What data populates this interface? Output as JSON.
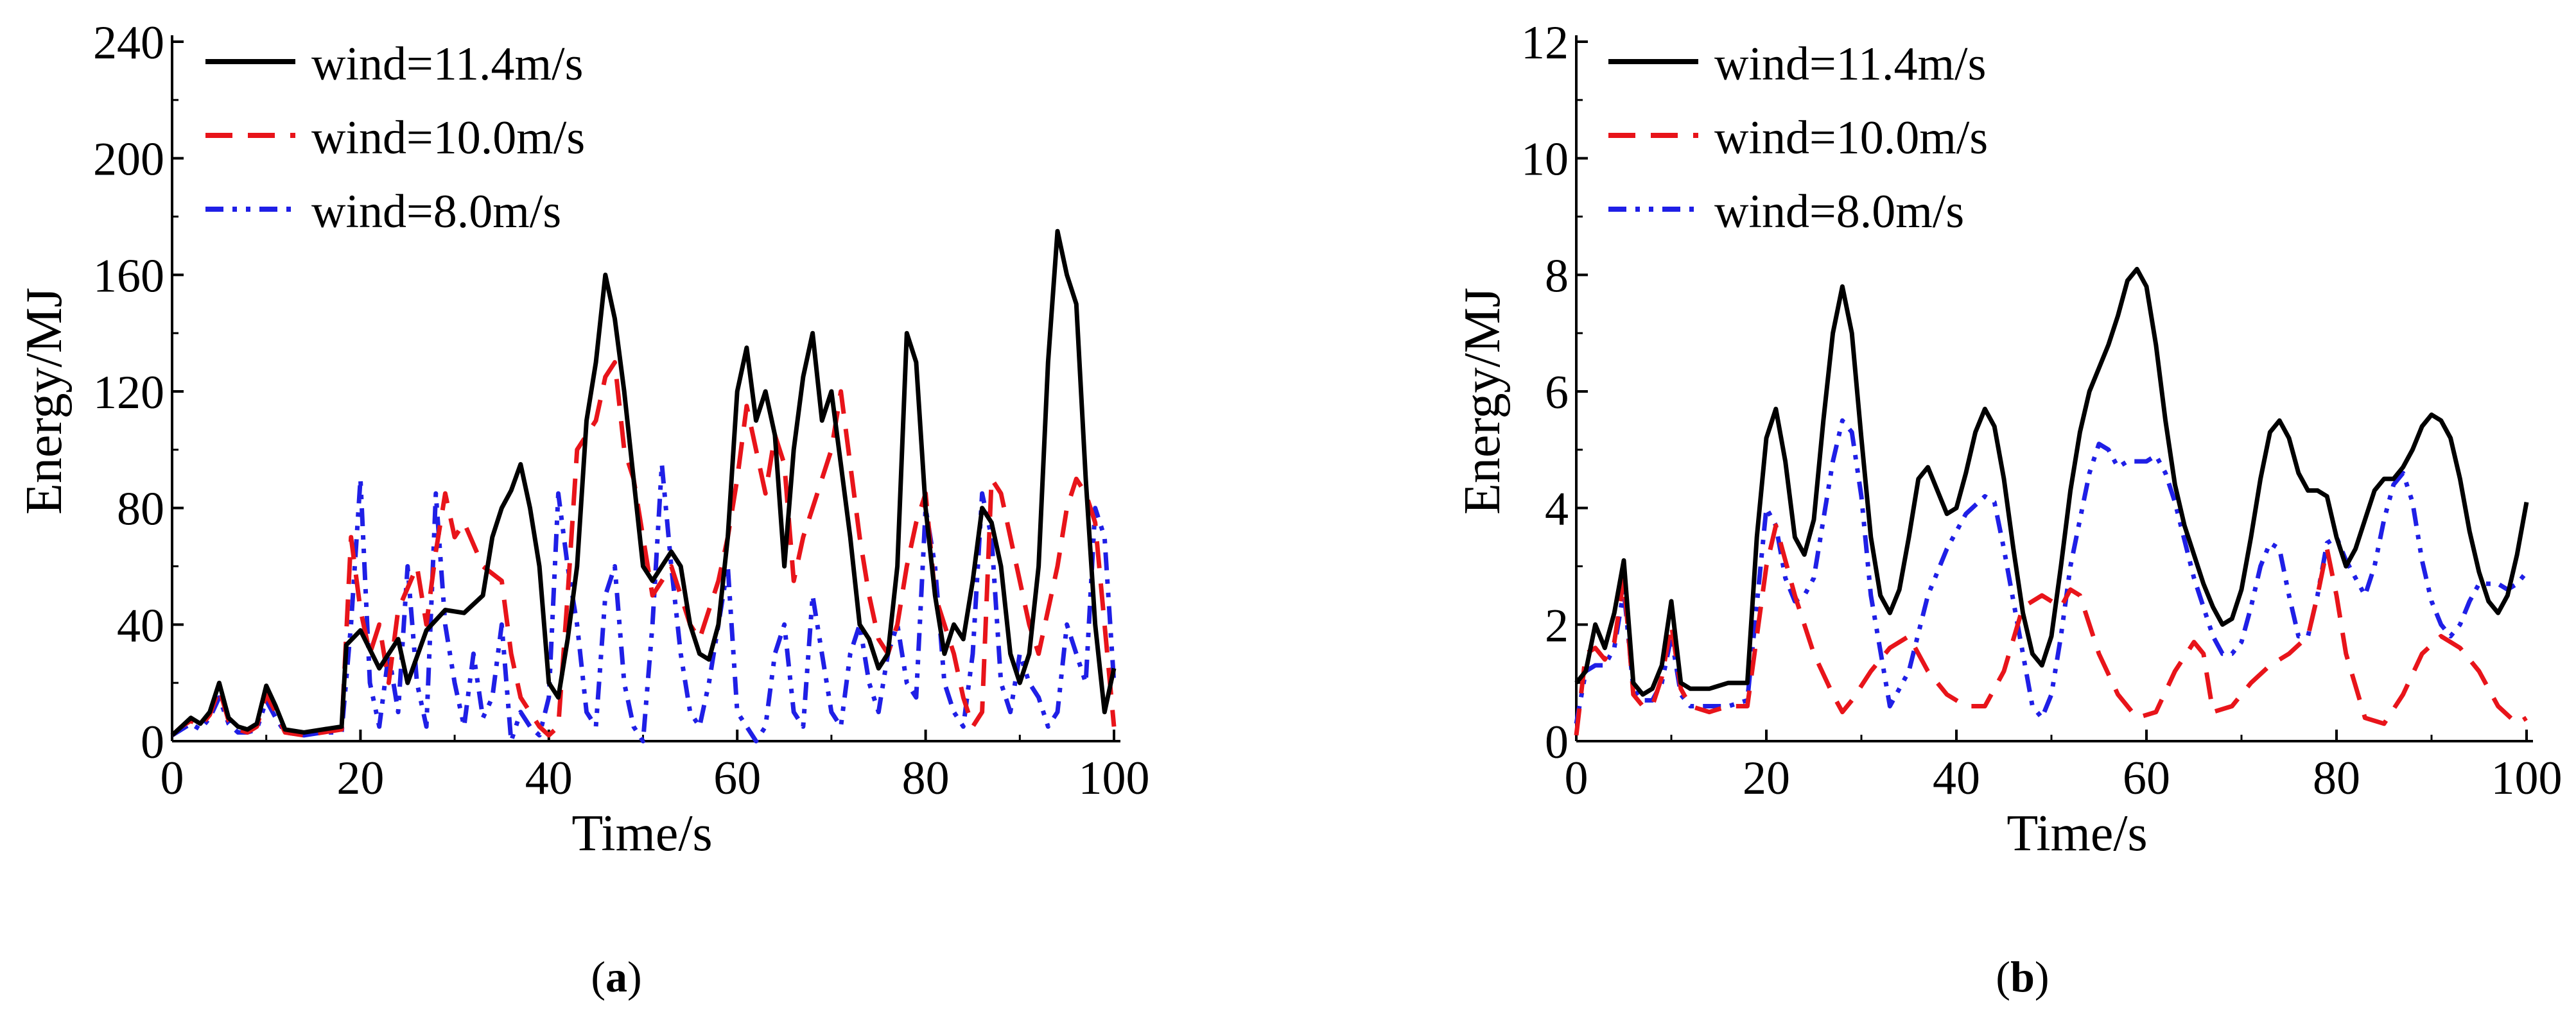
{
  "chart_data": [
    {
      "type": "line",
      "panel_label": "a",
      "xlabel": "Time/s",
      "ylabel": "Energy/MJ",
      "xlim": [
        0,
        100
      ],
      "ylim": [
        0,
        240
      ],
      "xticks": [
        "0",
        "20",
        "40",
        "60",
        "80",
        "100"
      ],
      "yticks": [
        "0",
        "40",
        "80",
        "120",
        "160",
        "200",
        "240"
      ],
      "series": [
        {
          "name": "wind=11.4m/s",
          "color": "#000000",
          "style": "solid",
          "x": [
            0,
            1,
            2,
            3,
            4,
            5,
            6,
            7,
            8,
            9,
            10,
            11,
            12,
            14,
            16,
            18,
            18.5,
            20,
            22,
            24,
            25,
            27,
            29,
            31,
            33,
            34,
            35,
            36,
            37,
            38,
            39,
            40,
            41,
            42,
            43,
            44,
            45,
            46,
            47,
            48,
            49,
            50,
            51,
            52,
            53,
            54,
            55,
            56,
            57,
            58,
            59,
            60,
            61,
            62,
            63,
            64,
            65,
            66,
            67,
            68,
            69,
            70,
            71,
            72,
            73,
            74,
            75,
            76,
            77,
            78,
            79,
            80,
            81,
            82,
            83,
            84,
            85,
            86,
            87,
            88,
            89,
            90,
            91,
            92,
            93,
            94,
            95,
            96,
            97,
            98,
            99,
            100
          ],
          "y": [
            2,
            5,
            8,
            6,
            10,
            20,
            8,
            5,
            4,
            6,
            19,
            12,
            4,
            3,
            4,
            5,
            33,
            38,
            25,
            35,
            20,
            38,
            45,
            44,
            50,
            70,
            80,
            86,
            95,
            80,
            60,
            20,
            15,
            35,
            60,
            110,
            130,
            160,
            145,
            120,
            90,
            60,
            55,
            60,
            65,
            60,
            40,
            30,
            28,
            40,
            70,
            120,
            135,
            110,
            120,
            105,
            60,
            100,
            125,
            140,
            110,
            120,
            95,
            70,
            40,
            35,
            25,
            30,
            60,
            140,
            130,
            80,
            50,
            30,
            40,
            35,
            55,
            80,
            75,
            60,
            30,
            20,
            30,
            60,
            130,
            175,
            160,
            150,
            90,
            40,
            10,
            25
          ]
        },
        {
          "name": "wind=10.0m/s",
          "color": "#e8141a",
          "style": "dashed",
          "x": [
            0,
            1,
            2,
            3,
            4,
            5,
            6,
            7,
            8,
            9,
            10,
            11,
            12,
            14,
            16,
            18,
            19,
            20,
            21,
            22,
            23,
            24,
            26,
            27,
            28,
            29,
            30,
            31,
            33,
            35,
            36,
            37,
            38,
            39,
            40,
            41,
            42,
            43,
            44,
            45,
            46,
            47,
            48,
            49,
            50,
            51,
            52,
            53,
            54,
            55,
            56,
            57,
            58,
            59,
            60,
            61,
            62,
            63,
            64,
            65,
            66,
            67,
            68,
            69,
            70,
            71,
            72,
            73,
            74,
            75,
            76,
            77,
            78,
            79,
            80,
            81,
            82,
            83,
            84,
            85,
            86,
            87,
            88,
            89,
            90,
            91,
            92,
            93,
            94,
            95,
            96,
            97,
            98,
            99,
            100
          ],
          "y": [
            2,
            5,
            7,
            5,
            9,
            18,
            7,
            4,
            3,
            5,
            16,
            10,
            3,
            2,
            3,
            4,
            70,
            45,
            30,
            40,
            20,
            45,
            60,
            40,
            65,
            85,
            70,
            75,
            60,
            55,
            30,
            15,
            10,
            5,
            2,
            5,
            50,
            100,
            105,
            110,
            125,
            130,
            100,
            90,
            70,
            50,
            55,
            60,
            50,
            40,
            35,
            45,
            55,
            70,
            90,
            115,
            100,
            85,
            105,
            95,
            55,
            70,
            80,
            90,
            100,
            120,
            95,
            70,
            50,
            35,
            30,
            40,
            60,
            75,
            85,
            50,
            40,
            30,
            15,
            5,
            10,
            90,
            85,
            70,
            55,
            40,
            30,
            45,
            60,
            80,
            90,
            85,
            75,
            40,
            5
          ]
        },
        {
          "name": "wind=8.0m/s",
          "color": "#1f1fe6",
          "style": "dashdot",
          "x": [
            0,
            1,
            2,
            3,
            4,
            5,
            6,
            7,
            8,
            9,
            10,
            11,
            12,
            14,
            16,
            18,
            19,
            20,
            21,
            22,
            23,
            24,
            25,
            26,
            27,
            28,
            29,
            30,
            31,
            32,
            33,
            34,
            35,
            36,
            37,
            38,
            39,
            40,
            41,
            42,
            43,
            44,
            45,
            46,
            47,
            48,
            49,
            50,
            51,
            52,
            53,
            54,
            55,
            56,
            57,
            58,
            59,
            60,
            61,
            62,
            63,
            64,
            65,
            66,
            67,
            68,
            69,
            70,
            71,
            72,
            73,
            74,
            75,
            76,
            77,
            78,
            79,
            80,
            81,
            82,
            83,
            84,
            85,
            86,
            87,
            88,
            89,
            90,
            91,
            92,
            93,
            94,
            95,
            96,
            97,
            98,
            99,
            100
          ],
          "y": [
            2,
            4,
            6,
            4,
            8,
            15,
            6,
            3,
            3,
            4,
            14,
            8,
            3,
            2,
            3,
            3,
            40,
            90,
            20,
            5,
            30,
            10,
            60,
            20,
            5,
            85,
            40,
            20,
            5,
            30,
            8,
            15,
            40,
            0,
            10,
            5,
            2,
            15,
            85,
            60,
            40,
            10,
            5,
            50,
            60,
            20,
            5,
            0,
            40,
            95,
            60,
            30,
            10,
            5,
            20,
            40,
            60,
            10,
            5,
            0,
            5,
            30,
            40,
            10,
            5,
            50,
            30,
            10,
            5,
            30,
            40,
            20,
            10,
            30,
            40,
            20,
            15,
            80,
            60,
            20,
            10,
            5,
            30,
            85,
            70,
            20,
            10,
            30,
            20,
            15,
            5,
            10,
            40,
            30,
            20,
            80,
            70,
            20
          ]
        }
      ]
    },
    {
      "type": "line",
      "panel_label": "b",
      "xlabel": "Time/s",
      "ylabel": "Energy/MJ",
      "xlim": [
        0,
        100
      ],
      "ylim": [
        0,
        12
      ],
      "xticks": [
        "0",
        "20",
        "40",
        "60",
        "80",
        "100"
      ],
      "yticks": [
        "0",
        "2",
        "4",
        "6",
        "8",
        "10",
        "12"
      ],
      "series": [
        {
          "name": "wind=11.4m/s",
          "color": "#000000",
          "style": "solid",
          "x": [
            0,
            1,
            2,
            3,
            4,
            5,
            6,
            7,
            8,
            9,
            10,
            11,
            12,
            14,
            16,
            18,
            19,
            20,
            21,
            22,
            23,
            24,
            25,
            26,
            27,
            28,
            29,
            30,
            31,
            32,
            33,
            34,
            35,
            36,
            37,
            38,
            39,
            40,
            41,
            42,
            43,
            44,
            45,
            46,
            47,
            48,
            49,
            50,
            51,
            52,
            53,
            54,
            55,
            56,
            57,
            58,
            59,
            60,
            61,
            62,
            63,
            64,
            65,
            66,
            67,
            68,
            69,
            70,
            71,
            72,
            73,
            74,
            75,
            76,
            77,
            78,
            79,
            80,
            81,
            82,
            83,
            84,
            85,
            86,
            87,
            88,
            89,
            90,
            91,
            92,
            93,
            94,
            95,
            96,
            97,
            98,
            99,
            100
          ],
          "y": [
            1,
            1.2,
            2,
            1.6,
            2.2,
            3.1,
            1,
            0.8,
            0.9,
            1.3,
            2.4,
            1,
            0.9,
            0.9,
            1,
            1,
            3.5,
            5.2,
            5.7,
            4.8,
            3.5,
            3.2,
            3.8,
            5.5,
            7,
            7.8,
            7,
            5.2,
            3.5,
            2.5,
            2.2,
            2.6,
            3.5,
            4.5,
            4.7,
            4.3,
            3.9,
            4,
            4.6,
            5.3,
            5.7,
            5.4,
            4.5,
            3.3,
            2.2,
            1.5,
            1.3,
            1.8,
            3,
            4.3,
            5.3,
            6,
            6.4,
            6.8,
            7.3,
            7.9,
            8.1,
            7.8,
            6.8,
            5.5,
            4.4,
            3.7,
            3.2,
            2.7,
            2.3,
            2,
            2.1,
            2.6,
            3.5,
            4.5,
            5.3,
            5.5,
            5.2,
            4.6,
            4.3,
            4.3,
            4.2,
            3.5,
            3,
            3.3,
            3.8,
            4.3,
            4.5,
            4.5,
            4.7,
            5,
            5.4,
            5.6,
            5.5,
            5.2,
            4.5,
            3.6,
            2.9,
            2.4,
            2.2,
            2.5,
            3.2,
            4.1
          ]
        },
        {
          "name": "wind=10.0m/s",
          "color": "#e8141a",
          "style": "dashed",
          "x": [
            0,
            1,
            2,
            3,
            4,
            5,
            6,
            7,
            8,
            9,
            10,
            11,
            12,
            14,
            16,
            18,
            20,
            21,
            23,
            25,
            27,
            28,
            29,
            31,
            33,
            35,
            37,
            39,
            41,
            43,
            45,
            47,
            49,
            50,
            51,
            52,
            53,
            55,
            57,
            59,
            61,
            63,
            65,
            66,
            67,
            69,
            71,
            73,
            75,
            77,
            78,
            79,
            80,
            81,
            83,
            85,
            87,
            89,
            91,
            93,
            95,
            97,
            99,
            100
          ],
          "y": [
            0.1,
            1.5,
            1.6,
            1.4,
            1.7,
            2.8,
            0.8,
            0.6,
            0.6,
            1.1,
            2,
            0.9,
            0.6,
            0.5,
            0.6,
            0.6,
            3,
            3.7,
            2.5,
            1.5,
            0.8,
            0.5,
            0.7,
            1.2,
            1.6,
            1.8,
            1.2,
            0.8,
            0.6,
            0.6,
            1.2,
            2.3,
            2.5,
            2.4,
            2.3,
            2.6,
            2.5,
            1.5,
            0.8,
            0.4,
            0.5,
            1.2,
            1.7,
            1.5,
            0.5,
            0.6,
            1,
            1.3,
            1.5,
            1.8,
            2.5,
            3.3,
            2.5,
            1.5,
            0.4,
            0.3,
            0.8,
            1.5,
            1.8,
            1.6,
            1.2,
            0.6,
            0.3,
            0.4
          ]
        },
        {
          "name": "wind=8.0m/s",
          "color": "#1f1fe6",
          "style": "dashdot",
          "x": [
            0,
            1,
            2,
            3,
            4,
            5,
            6,
            7,
            8,
            9,
            10,
            11,
            12,
            14,
            16,
            18,
            20,
            21,
            22,
            23,
            24,
            25,
            26,
            27,
            28,
            29,
            30,
            31,
            33,
            35,
            37,
            39,
            41,
            43,
            44,
            45,
            47,
            48,
            49,
            50,
            51,
            52,
            53,
            54,
            55,
            56,
            57,
            58,
            59,
            60,
            61,
            62,
            63,
            65,
            67,
            68,
            69,
            70,
            71,
            72,
            73,
            74,
            75,
            76,
            77,
            78,
            79,
            80,
            81,
            82,
            83,
            84,
            85,
            86,
            87,
            88,
            89,
            90,
            91,
            92,
            93,
            94,
            95,
            96,
            97,
            98,
            99,
            100
          ],
          "y": [
            0.3,
            1.2,
            1.3,
            1.3,
            1.6,
            2.6,
            0.9,
            0.7,
            0.7,
            1,
            1.8,
            0.8,
            0.6,
            0.6,
            0.6,
            0.7,
            4,
            3.7,
            2.8,
            2.4,
            2.5,
            2.8,
            3.8,
            4.8,
            5.5,
            5.3,
            4.2,
            2.5,
            0.6,
            1.2,
            2.5,
            3.3,
            3.9,
            4.2,
            4.1,
            3.3,
            1.5,
            0.6,
            0.4,
            0.8,
            1.8,
            3,
            3.8,
            4.6,
            5.1,
            5,
            4.7,
            4.8,
            4.8,
            4.8,
            4.9,
            4.6,
            4.1,
            2.8,
            1.8,
            1.5,
            1.5,
            1.7,
            2.3,
            3,
            3.4,
            3.3,
            2.5,
            1.8,
            1.8,
            2.5,
            3.4,
            3.5,
            3.1,
            2.8,
            2.5,
            3,
            3.8,
            4.4,
            4.6,
            4.1,
            3.1,
            2.4,
            2,
            1.8,
            2,
            2.4,
            2.7,
            2.7,
            2.7,
            2.6,
            2.7,
            2.9
          ]
        }
      ]
    }
  ],
  "captions": {
    "a": {
      "open": "(",
      "letter": "a",
      "close": ")"
    },
    "b": {
      "open": "(",
      "letter": "b",
      "close": ")"
    }
  }
}
